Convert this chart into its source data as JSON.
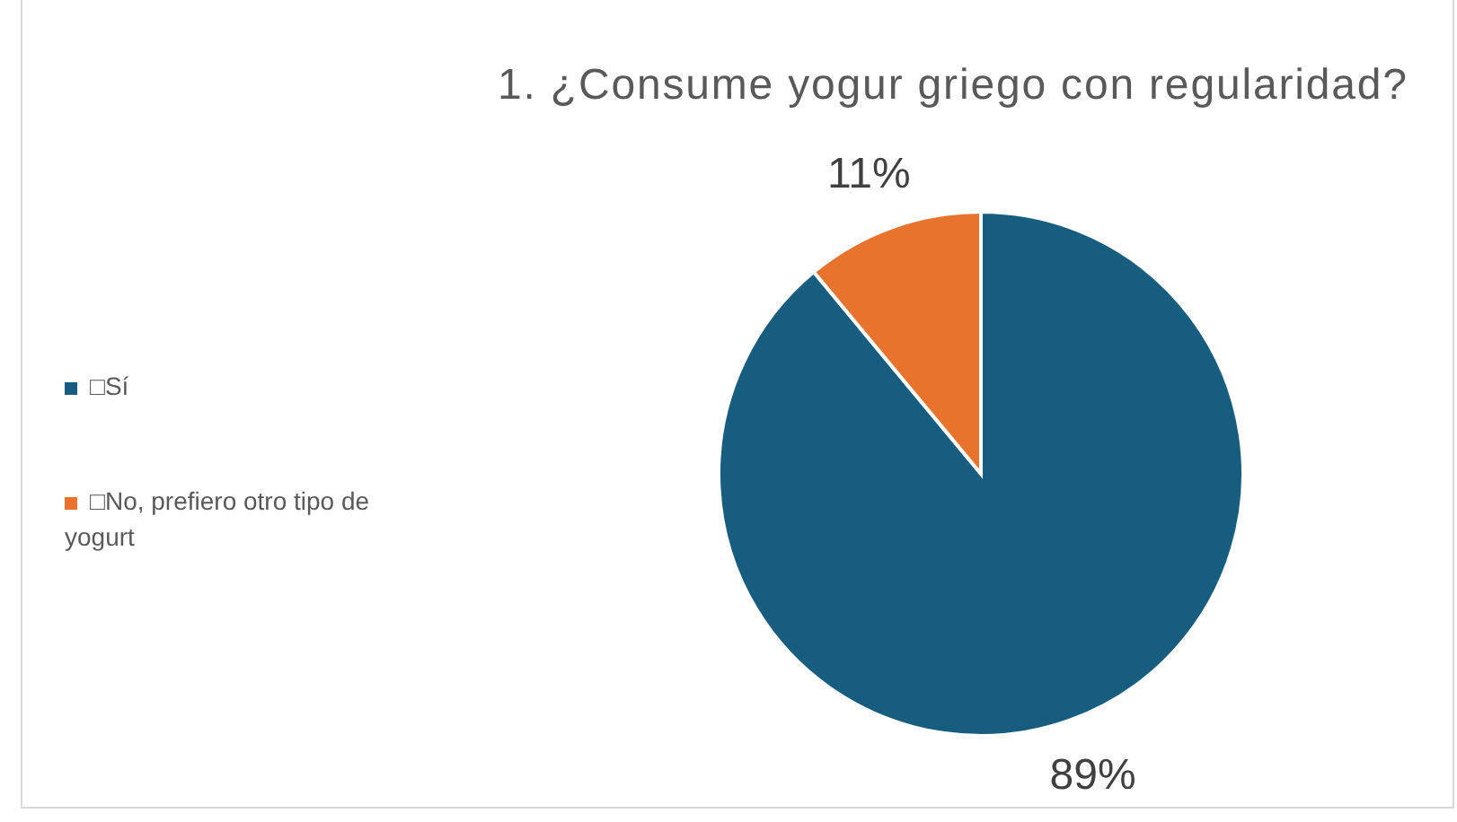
{
  "chart_data": {
    "type": "pie",
    "title": "1. ¿Consume yogur griego con regularidad?",
    "categories": [
      "□Sí",
      "□No, prefiero otro tipo de yogurt"
    ],
    "values": [
      89,
      11
    ],
    "colors": [
      "#175d80",
      "#e8732c"
    ],
    "value_labels": [
      "89%",
      "11%"
    ],
    "legend": "left"
  }
}
